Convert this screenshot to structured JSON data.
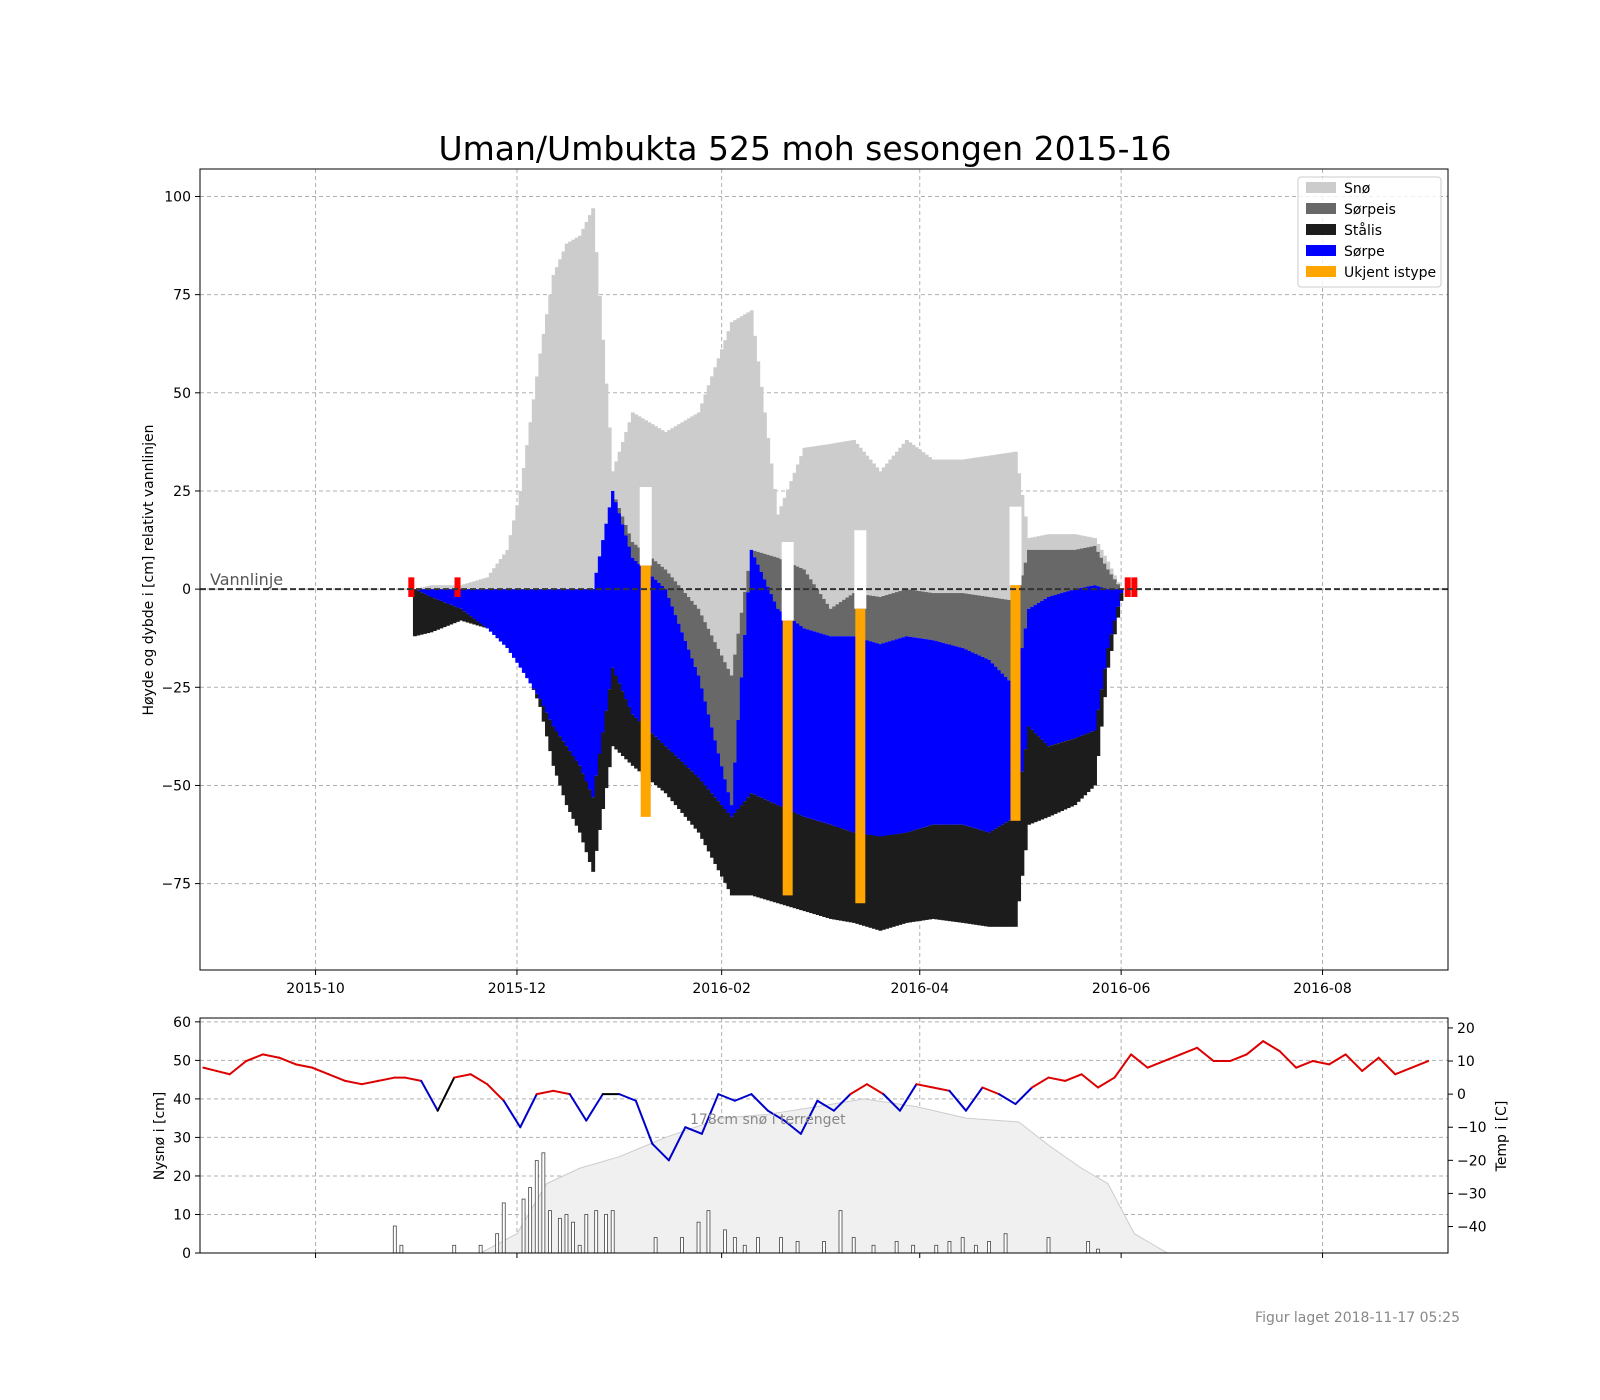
{
  "figure": {
    "footer": "Figur laget 2018-11-17 05:25"
  },
  "chart_data": [
    {
      "type": "bar",
      "title": "Uman/Umbukta 525 moh sesongen 2015-16",
      "ylabel": "Høyde og dybde i [cm] relativt vannlinjen",
      "xlabel": "",
      "ylim": [
        -97,
        107
      ],
      "xlim": [
        "2015-08-27",
        "2016-09-08"
      ],
      "x_ticks": [
        "2015-10",
        "2015-12",
        "2016-02",
        "2016-04",
        "2016-06",
        "2016-08"
      ],
      "y_ticks": [
        -75,
        -50,
        -25,
        0,
        25,
        50,
        75,
        100
      ],
      "grid": true,
      "legend_position": "top-right",
      "legend": [
        {
          "name": "Snø",
          "color": "#cccccc"
        },
        {
          "name": "Sørpeis",
          "color": "#686868"
        },
        {
          "name": "Stålis",
          "color": "#1c1c1c"
        },
        {
          "name": "Sørpe",
          "color": "#0000ff"
        },
        {
          "name": "Ukjent istype",
          "color": "#ffa500"
        }
      ],
      "waterline_label": "Vannlinje",
      "waterline_value": 0,
      "colors": {
        "snow": "#cccccc",
        "slush_ice": "#686868",
        "black_ice": "#1c1c1c",
        "slush": "#0000ff",
        "unknown": "#ffa500",
        "open_water": "#ff0000"
      },
      "open_water_markers": [
        "2015-10-30",
        "2015-11-13",
        "2016-06-03",
        "2016-06-05"
      ],
      "layers_profile": {
        "dates": [
          "2015-10-31",
          "2015-11-05",
          "2015-11-14",
          "2015-11-22",
          "2015-11-28",
          "2015-12-02",
          "2015-12-08",
          "2015-12-12",
          "2015-12-16",
          "2015-12-20",
          "2015-12-24",
          "2015-12-30",
          "2016-01-05",
          "2016-01-15",
          "2016-01-25",
          "2016-02-04",
          "2016-02-10",
          "2016-02-18",
          "2016-02-26",
          "2016-03-05",
          "2016-03-12",
          "2016-03-20",
          "2016-03-28",
          "2016-04-05",
          "2016-04-14",
          "2016-04-22",
          "2016-04-30",
          "2016-05-04",
          "2016-05-10",
          "2016-05-18",
          "2016-05-24",
          "2016-05-28",
          "2016-06-01"
        ],
        "snow_top": [
          0,
          1,
          1,
          3,
          10,
          25,
          60,
          80,
          88,
          90,
          97,
          30,
          45,
          40,
          45,
          68,
          71,
          19,
          36,
          37,
          38,
          30,
          38,
          33,
          33,
          34,
          35,
          13,
          14,
          14,
          13,
          7,
          0
        ],
        "slushice_top": [
          0,
          0,
          0,
          0,
          0,
          0,
          0,
          0,
          0,
          0,
          0,
          25,
          12,
          5,
          -5,
          -22,
          10,
          8,
          5,
          -5,
          -1,
          -2,
          0,
          -1,
          -1,
          -2,
          -3,
          10,
          10,
          10,
          11,
          5,
          0
        ],
        "slush_top": [
          0,
          0,
          0,
          0,
          0,
          0,
          0,
          0,
          0,
          0,
          0,
          25,
          8,
          0,
          -22,
          -55,
          10,
          -5,
          -10,
          -12,
          -12,
          -14,
          -12,
          -13,
          -15,
          -18,
          -25,
          -5,
          -2,
          0,
          1,
          0,
          0
        ],
        "ice_top": [
          0,
          -2,
          -5,
          -10,
          -15,
          -20,
          -28,
          -35,
          -40,
          -45,
          -53,
          -20,
          -32,
          -40,
          -48,
          -58,
          -52,
          -55,
          -58,
          -60,
          -62,
          -63,
          -62,
          -60,
          -60,
          -62,
          -58,
          -35,
          -40,
          -38,
          -36,
          -15,
          -1
        ],
        "ice_bottom": [
          -12,
          -11,
          -8,
          -10,
          -12,
          -17,
          -30,
          -45,
          -55,
          -62,
          -72,
          -40,
          -45,
          -52,
          -62,
          -78,
          -78,
          -80,
          -82,
          -84,
          -85,
          -87,
          -85,
          -84,
          -85,
          -86,
          -86,
          -60,
          -58,
          -55,
          -50,
          -20,
          -3
        ]
      },
      "unknown_segments": [
        {
          "x": "2016-01-09",
          "top": 6,
          "bottom": -58
        },
        {
          "x": "2016-02-21",
          "top": -8,
          "bottom": -78
        },
        {
          "x": "2016-03-14",
          "top": -5,
          "bottom": -80
        },
        {
          "x": "2016-04-30",
          "top": 1,
          "bottom": -59
        }
      ]
    },
    {
      "type": "line",
      "title": "",
      "ylabel": "Nysnø i [cm]",
      "y2label": "Temp i [C]",
      "ylim": [
        0,
        61
      ],
      "y2lim": [
        -48,
        23
      ],
      "y_ticks": [
        0,
        10,
        20,
        30,
        40,
        50,
        60
      ],
      "y2_ticks": [
        20,
        10,
        0,
        -10,
        -20,
        -30,
        -40
      ],
      "grid": true,
      "snow_depth_annotation": "178cm snø i terrenget",
      "snow_depth_profile": {
        "dates": [
          "2015-11-10",
          "2015-11-20",
          "2015-12-01",
          "2015-12-10",
          "2015-12-20",
          "2016-01-01",
          "2016-01-15",
          "2016-02-01",
          "2016-02-15",
          "2016-03-01",
          "2016-03-15",
          "2016-03-31",
          "2016-04-15",
          "2016-05-01",
          "2016-05-10",
          "2016-05-20",
          "2016-05-28",
          "2016-06-05",
          "2016-06-15"
        ],
        "values": [
          0,
          0,
          5,
          18,
          22,
          25,
          30,
          35,
          36,
          38,
          40,
          38,
          35,
          34,
          28,
          22,
          18,
          5,
          0
        ]
      },
      "new_snow": {
        "dates": [
          "2015-10-25",
          "2015-10-27",
          "2015-11-12",
          "2015-11-20",
          "2015-11-25",
          "2015-11-27",
          "2015-12-03",
          "2015-12-05",
          "2015-12-07",
          "2015-12-09",
          "2015-12-11",
          "2015-12-14",
          "2015-12-16",
          "2015-12-18",
          "2015-12-20",
          "2015-12-22",
          "2015-12-25",
          "2015-12-28",
          "2015-12-30",
          "2016-01-12",
          "2016-01-20",
          "2016-01-25",
          "2016-01-28",
          "2016-02-02",
          "2016-02-05",
          "2016-02-08",
          "2016-02-12",
          "2016-02-19",
          "2016-02-24",
          "2016-03-03",
          "2016-03-08",
          "2016-03-12",
          "2016-03-18",
          "2016-03-25",
          "2016-03-30",
          "2016-04-06",
          "2016-04-10",
          "2016-04-14",
          "2016-04-18",
          "2016-04-22",
          "2016-04-27",
          "2016-05-10",
          "2016-05-22",
          "2016-05-25"
        ],
        "values": [
          7,
          2,
          2,
          2,
          5,
          13,
          14,
          17,
          24,
          26,
          11,
          9,
          10,
          8,
          2,
          10,
          11,
          10,
          11,
          4,
          4,
          8,
          11,
          6,
          4,
          2,
          4,
          4,
          3,
          3,
          11,
          4,
          2,
          3,
          2,
          2,
          3,
          4,
          2,
          3,
          5,
          4,
          3,
          1
        ],
        "color": "#999999"
      },
      "temperature": {
        "dates": [
          "2015-08-28",
          "2015-09-01",
          "2015-09-05",
          "2015-09-10",
          "2015-09-15",
          "2015-09-20",
          "2015-09-25",
          "2015-09-30",
          "2015-10-05",
          "2015-10-10",
          "2015-10-15",
          "2015-10-20",
          "2015-10-25",
          "2015-10-28",
          "2015-11-02",
          "2015-11-07",
          "2015-11-12",
          "2015-11-17",
          "2015-11-22",
          "2015-11-27",
          "2015-12-02",
          "2015-12-07",
          "2015-12-12",
          "2015-12-17",
          "2015-12-22",
          "2015-12-27",
          "2016-01-01",
          "2016-01-06",
          "2016-01-11",
          "2016-01-16",
          "2016-01-21",
          "2016-01-26",
          "2016-01-31",
          "2016-02-05",
          "2016-02-10",
          "2016-02-15",
          "2016-02-20",
          "2016-02-25",
          "2016-03-01",
          "2016-03-06",
          "2016-03-11",
          "2016-03-16",
          "2016-03-21",
          "2016-03-26",
          "2016-03-31",
          "2016-04-05",
          "2016-04-10",
          "2016-04-15",
          "2016-04-20",
          "2016-04-25",
          "2016-04-30",
          "2016-05-05",
          "2016-05-10",
          "2016-05-15",
          "2016-05-20",
          "2016-05-25",
          "2016-05-30",
          "2016-06-04",
          "2016-06-09",
          "2016-06-14",
          "2016-06-19",
          "2016-06-24",
          "2016-06-29",
          "2016-07-04",
          "2016-07-09",
          "2016-07-14",
          "2016-07-19",
          "2016-07-24",
          "2016-07-29",
          "2016-08-03",
          "2016-08-08",
          "2016-08-13",
          "2016-08-18",
          "2016-08-23",
          "2016-08-28",
          "2016-09-02"
        ],
        "values": [
          8,
          7,
          6,
          10,
          12,
          11,
          9,
          8,
          6,
          4,
          3,
          4,
          5,
          5,
          4,
          -5,
          5,
          6,
          3,
          -2,
          -10,
          0,
          1,
          0,
          -8,
          0,
          0,
          -2,
          -15,
          -20,
          -10,
          -12,
          0,
          -2,
          0,
          -5,
          -8,
          -12,
          -2,
          -5,
          0,
          3,
          0,
          -5,
          3,
          2,
          1,
          -5,
          2,
          0,
          -3,
          2,
          5,
          4,
          6,
          2,
          5,
          12,
          8,
          10,
          12,
          14,
          10,
          10,
          12,
          16,
          13,
          8,
          10,
          9,
          12,
          7,
          11,
          6,
          8,
          10
        ],
        "positive_color": "#dd0000",
        "negative_color": "#0000cc",
        "zero_color": "#000000"
      }
    }
  ]
}
